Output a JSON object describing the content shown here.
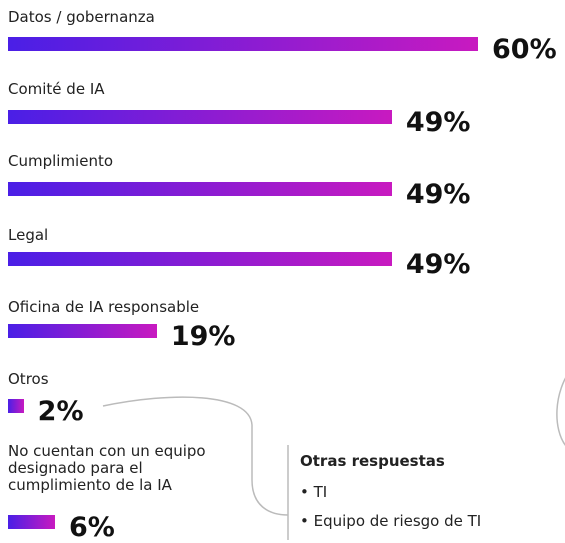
{
  "chart_data": {
    "type": "bar",
    "categories": [
      "Datos / gobernanza",
      "Comité de IA",
      "Cumplimiento",
      "Legal",
      "Oficina de IA responsable",
      "Otros",
      "No cuentan con un equipo designado para el cumplimiento de la IA"
    ],
    "values": [
      60,
      49,
      49,
      49,
      19,
      2,
      6
    ],
    "value_labels": [
      "60%",
      "49%",
      "49%",
      "49%",
      "19%",
      "2%",
      "6%"
    ],
    "annotation": {
      "title": "Otras respuestas",
      "items": [
        "TI",
        "Equipo de riesgo de TI"
      ]
    }
  }
}
